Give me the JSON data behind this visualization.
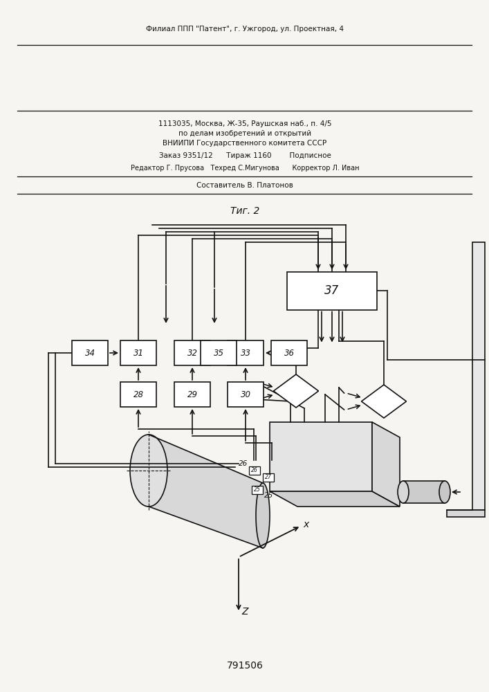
{
  "patent_number": "791506",
  "fig_label": "Τиг. 2",
  "bg": "#f7f5f1",
  "footer": {
    "l1": "Составитель В. Платонов",
    "l2": "Редактор Г. Прусова   Техред С.Мигунова      Корректор Л. Иван",
    "l3": "Заказ 9351/12      Тираж 1160        Подписное",
    "l4": "ВНИИПИ Государственного комитета СССР",
    "l5": "по делам изобретений и открытий",
    "l6": "1113035, Москва, Ж-35, Раушская наб., п. 4/5",
    "l7": "Филиал ППП \"Патент\", г. Ужгород, ул. Проектная, 4"
  }
}
